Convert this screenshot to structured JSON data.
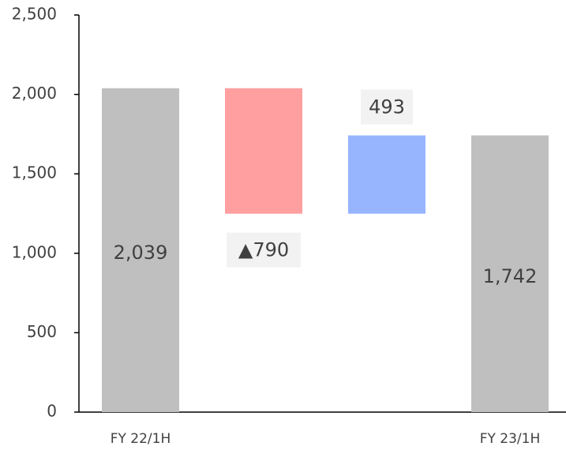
{
  "chart_data": {
    "type": "waterfall",
    "categories": [
      "FY 22/1H",
      null,
      null,
      "FY 23/1H"
    ],
    "values": [
      2039,
      -790,
      493,
      1742
    ],
    "value_labels": [
      "2,039",
      "▲790",
      "493",
      "1,742"
    ],
    "colors": [
      "#bfbfbf",
      "#ff9f9f",
      "#97b4ff",
      "#bfbfbf"
    ],
    "ylim": [
      0,
      2500
    ],
    "yticks": [
      0,
      500,
      {
        "value": 1000,
        "label": "1,000"
      },
      {
        "value": 1500,
        "label": "1,500"
      },
      {
        "value": 2000,
        "label": "2,000"
      },
      {
        "value": 2500,
        "label": "2,500"
      }
    ]
  }
}
